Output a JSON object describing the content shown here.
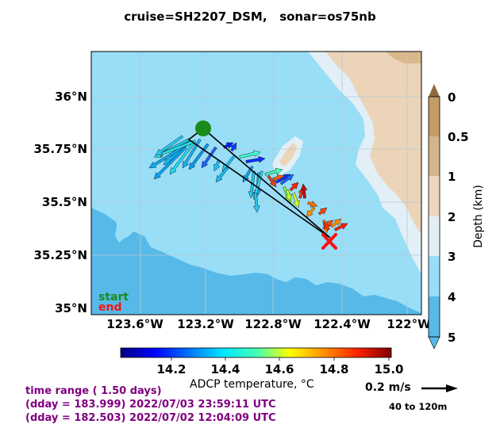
{
  "title": "cruise=SH2207_DSM,   sonar=os75nb",
  "map": {
    "lat_ticks": [
      "36°N",
      "35.75°N",
      "35.5°N",
      "35.25°N",
      "35°N"
    ],
    "lon_ticks": [
      "123.6°W",
      "123.2°W",
      "122.8°W",
      "122.4°W",
      "122°W"
    ],
    "start_label": "start",
    "end_label": "end",
    "colors": {
      "ocean_deep": "#57b9e8",
      "ocean_mid": "#98def7",
      "shelf": "#e2eff6",
      "land_light": "#ebd4b8",
      "land_mid": "#d9b98c",
      "land_dark": "#c8a06a",
      "track": "#000000",
      "start_marker": "#1a8c1a",
      "end_marker": "#ff1010"
    }
  },
  "depth_colorbar": {
    "label": "Depth (km)",
    "ticks": [
      "0",
      "0.5",
      "1",
      "2",
      "3",
      "4",
      "5"
    ]
  },
  "temp_colorbar": {
    "label": "ADCP temperature, °C",
    "ticks": [
      "14.2",
      "14.4",
      "14.6",
      "14.8",
      "15.0"
    ]
  },
  "info": {
    "line1": "time range ( 1.50 days)",
    "line2": "(dday = 183.999) 2022/07/03 23:59:11 UTC",
    "line3": "(dday = 182.503) 2022/07/02 12:04:09 UTC"
  },
  "legend": {
    "scale_label": "0.2 m/s",
    "range_label": "40 to 120m"
  }
}
